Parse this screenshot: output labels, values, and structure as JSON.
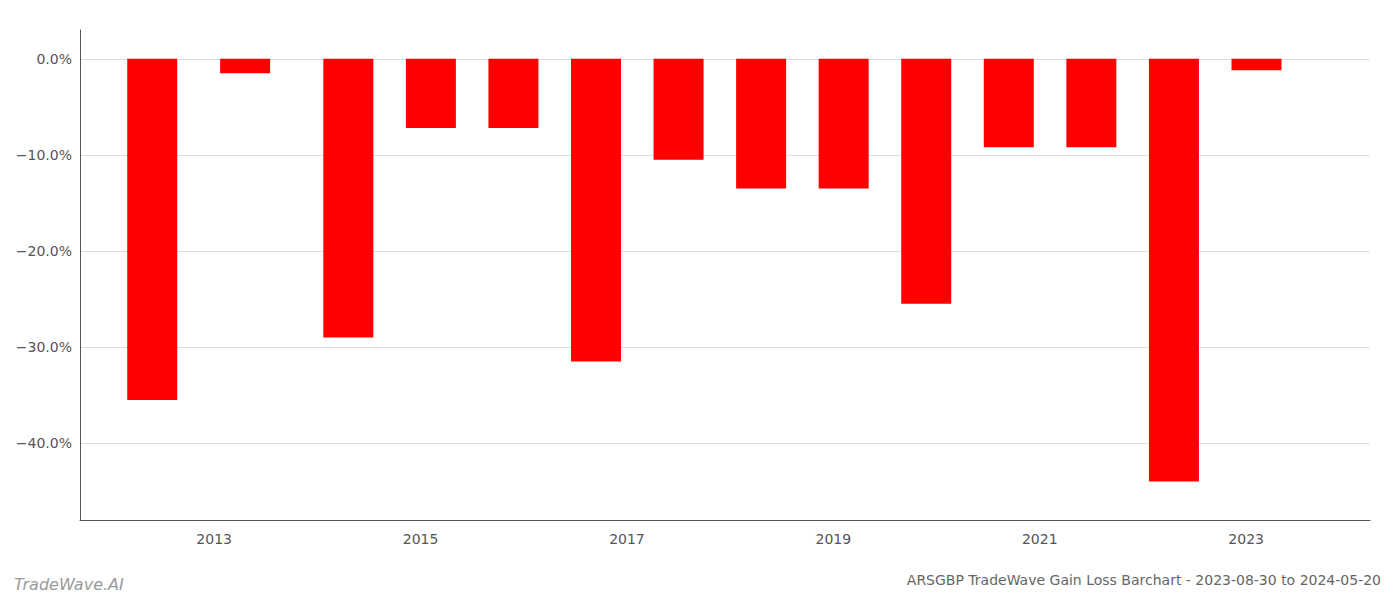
{
  "chart_data": {
    "type": "bar",
    "title": "ARSGBP TradeWave Gain Loss Barchart - 2023-08-30 to 2024-05-20",
    "annotations": [
      "TradeWave.AI"
    ],
    "x": [
      2012.4,
      2013.3,
      2014.3,
      2015.1,
      2015.9,
      2016.7,
      2017.5,
      2018.3,
      2019.1,
      2019.9,
      2020.7,
      2021.5,
      2022.3,
      2023.1
    ],
    "values": [
      -35.5,
      -1.5,
      -29.0,
      -7.2,
      -7.2,
      -31.5,
      -10.5,
      -13.5,
      -13.5,
      -25.5,
      -9.2,
      -9.2,
      -44.0,
      -1.2
    ],
    "color": "#ff0000",
    "xlim": [
      2011.7,
      2024.2
    ],
    "xticks": [
      2013,
      2015,
      2017,
      2019,
      2021,
      2023
    ],
    "ylim": [
      -48,
      3
    ],
    "yticks": [
      {
        "value": 0.0,
        "label": "0.0%"
      },
      {
        "value": -10.0,
        "label": "−10.0%"
      },
      {
        "value": -20.0,
        "label": "−20.0%"
      },
      {
        "value": -30.0,
        "label": "−30.0%"
      },
      {
        "value": -40.0,
        "label": "−40.0%"
      }
    ],
    "grid": true
  }
}
